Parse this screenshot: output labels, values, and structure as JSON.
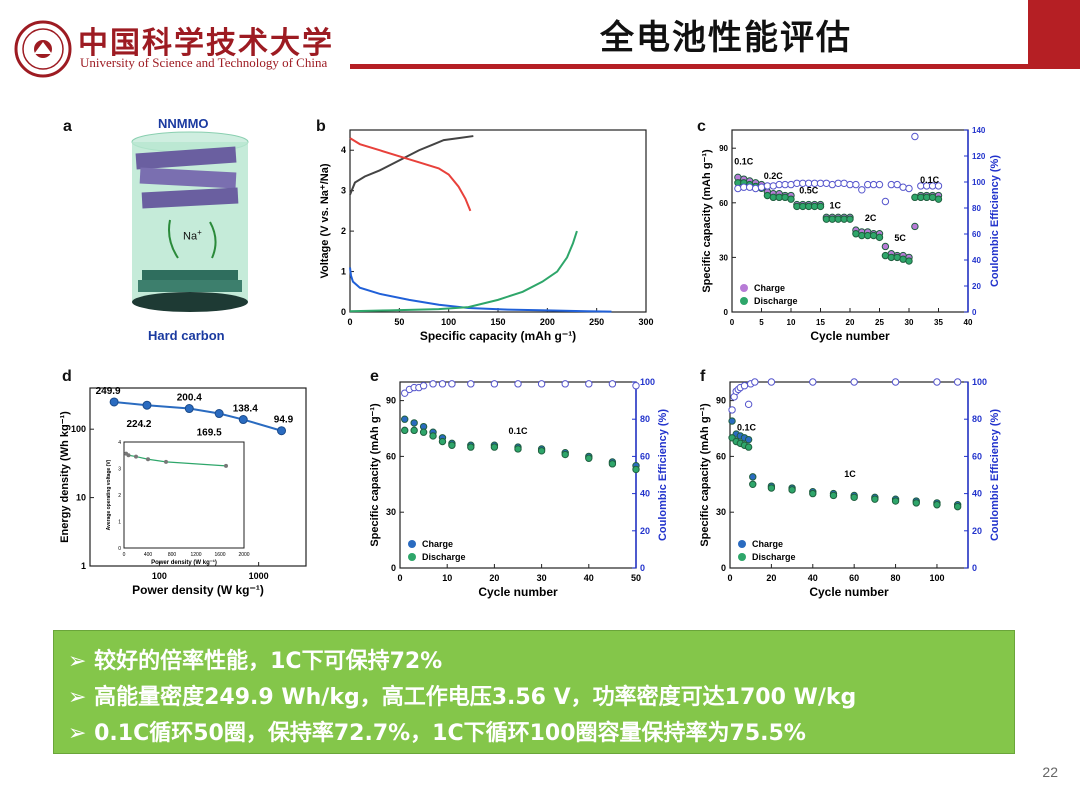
{
  "header": {
    "title": "全电池性能评估",
    "logo_cn": "中国科学技术大学",
    "logo_en": "University of Science and Technology of China",
    "accent_color": "#b51f24"
  },
  "panels": {
    "a": {
      "letter": "a",
      "top_label": "NNMMO",
      "ion_label": "Na",
      "ion_charge": "+",
      "bottom_label": "Hard carbon"
    }
  },
  "chart_data": [
    {
      "id": "b",
      "letter": "b",
      "type": "line",
      "title": "",
      "xlabel": "Specific capacity (mAh g⁻¹)",
      "ylabel": "Voltage (V vs. Na⁺/Na)",
      "xlim": [
        0,
        300
      ],
      "ylim": [
        0,
        4.5
      ],
      "xticks": [
        0,
        50,
        100,
        150,
        200,
        250,
        300
      ],
      "yticks": [
        0,
        1,
        2,
        3,
        4
      ],
      "series": [
        {
          "name": "cathode charge",
          "color": "#444444",
          "x": [
            0,
            5,
            15,
            30,
            50,
            70,
            85,
            95,
            110,
            125
          ],
          "y": [
            2.9,
            3.2,
            3.35,
            3.5,
            3.75,
            4.0,
            4.15,
            4.25,
            4.3,
            4.35
          ]
        },
        {
          "name": "cathode discharge",
          "color": "#e8413b",
          "x": [
            0,
            10,
            30,
            50,
            70,
            90,
            100,
            110,
            117,
            122
          ],
          "y": [
            4.3,
            4.15,
            4.0,
            3.85,
            3.7,
            3.55,
            3.4,
            3.1,
            2.8,
            2.5
          ]
        },
        {
          "name": "anode sodiation",
          "color": "#2060d8",
          "x": [
            0,
            1,
            3,
            10,
            30,
            60,
            90,
            120,
            160,
            200,
            240,
            265
          ],
          "y": [
            1.1,
            0.9,
            0.75,
            0.6,
            0.45,
            0.3,
            0.18,
            0.1,
            0.06,
            0.04,
            0.02,
            0.01
          ]
        },
        {
          "name": "anode desodiation",
          "color": "#2ea66a",
          "x": [
            0,
            40,
            90,
            120,
            150,
            175,
            195,
            210,
            220,
            226,
            230
          ],
          "y": [
            0.02,
            0.04,
            0.07,
            0.12,
            0.3,
            0.5,
            0.75,
            1.0,
            1.35,
            1.7,
            2.0
          ]
        }
      ]
    },
    {
      "id": "c",
      "letter": "c",
      "type": "scatter",
      "xlabel": "Cycle number",
      "ylabel": "Specific capacity (mAh g⁻¹)",
      "y2label": "Coulombic Efficiency (%)",
      "xlim": [
        0,
        40
      ],
      "ylim": [
        0,
        100
      ],
      "y2lim": [
        0,
        140
      ],
      "xticks": [
        0,
        5,
        10,
        15,
        20,
        25,
        30,
        35,
        40
      ],
      "yticks": [
        0,
        30,
        60,
        90
      ],
      "y2ticks": [
        0,
        20,
        40,
        60,
        80,
        100,
        120,
        140
      ],
      "rate_labels": [
        {
          "text": "0.1C",
          "x": 2,
          "y": 81
        },
        {
          "text": "0.2C",
          "x": 7,
          "y": 73
        },
        {
          "text": "0.5C",
          "x": 13,
          "y": 65
        },
        {
          "text": "1C",
          "x": 17.5,
          "y": 57
        },
        {
          "text": "2C",
          "x": 23.5,
          "y": 50
        },
        {
          "text": "5C",
          "x": 28.5,
          "y": 39
        },
        {
          "text": "0.1C",
          "x": 33.5,
          "y": 71
        }
      ],
      "legend": [
        "Charge",
        "Discharge"
      ],
      "series": [
        {
          "name": "Charge",
          "color": "#b77bd6",
          "x": [
            1,
            2,
            3,
            4,
            5,
            6,
            7,
            8,
            9,
            10,
            11,
            12,
            13,
            14,
            15,
            16,
            17,
            18,
            19,
            20,
            21,
            22,
            23,
            24,
            25,
            26,
            27,
            28,
            29,
            30,
            31,
            32,
            33,
            34,
            35
          ],
          "y": [
            74,
            73,
            72,
            71,
            70,
            66,
            65,
            65,
            64,
            64,
            59,
            59,
            59,
            59,
            59,
            52,
            52,
            52,
            52,
            52,
            45,
            44,
            44,
            43,
            43,
            36,
            32,
            31,
            31,
            30,
            47,
            64,
            64,
            64,
            64
          ]
        },
        {
          "name": "Discharge",
          "color": "#2ea66a",
          "x": [
            1,
            2,
            3,
            4,
            5,
            6,
            7,
            8,
            9,
            10,
            11,
            12,
            13,
            14,
            15,
            16,
            17,
            18,
            19,
            20,
            21,
            22,
            23,
            24,
            25,
            26,
            27,
            28,
            29,
            30,
            31,
            32,
            33,
            34,
            35
          ],
          "y": [
            71,
            71,
            70,
            69,
            68,
            64,
            63,
            63,
            63,
            62,
            58,
            58,
            58,
            58,
            58,
            51,
            51,
            51,
            51,
            51,
            43,
            42,
            42,
            42,
            41,
            31,
            30,
            30,
            29,
            28,
            63,
            63,
            63,
            63,
            62
          ]
        },
        {
          "name": "Coulombic Efficiency",
          "color": "#5555cc",
          "axis": "y2",
          "x": [
            1,
            2,
            3,
            4,
            5,
            6,
            7,
            8,
            9,
            10,
            11,
            12,
            13,
            14,
            15,
            16,
            17,
            18,
            19,
            20,
            21,
            22,
            23,
            24,
            25,
            26,
            27,
            28,
            29,
            30,
            31,
            32,
            33,
            34,
            35
          ],
          "y": [
            95,
            96,
            96,
            95,
            96,
            97,
            97,
            98,
            98,
            98,
            99,
            99,
            99,
            99,
            99,
            99,
            98,
            99,
            99,
            98,
            98,
            94,
            98,
            98,
            98,
            85,
            98,
            98,
            96,
            95,
            135,
            97,
            97,
            97,
            97
          ]
        }
      ]
    },
    {
      "id": "d",
      "letter": "d",
      "type": "line",
      "xlabel": "Power density (W kg⁻¹)",
      "ylabel": "Energy density (Wh kg⁻¹)",
      "xscale": "log",
      "yscale": "log",
      "xlim": [
        20,
        3000
      ],
      "ylim": [
        1,
        400
      ],
      "xticks": [
        100,
        1000
      ],
      "yticks": [
        1,
        10,
        100
      ],
      "series": [
        {
          "name": "Energy density",
          "color": "#2a6bc0",
          "x": [
            35,
            75,
            200,
            400,
            700,
            1700
          ],
          "y": [
            249.9,
            224.2,
            200.4,
            169.5,
            138.4,
            94.9
          ]
        }
      ],
      "point_labels": [
        "249.9",
        "224.2",
        "200.4",
        "169.5",
        "138.4",
        "94.9"
      ],
      "inset": {
        "xlabel": "Power density (W kg⁻¹)",
        "ylabel": "Average operating voltage (V)",
        "xlim": [
          0,
          2000
        ],
        "ylim": [
          0,
          4
        ],
        "xticks": [
          0,
          400,
          800,
          1200,
          1600,
          2000
        ],
        "yticks": [
          0,
          1,
          2,
          3,
          4
        ],
        "x": [
          35,
          75,
          200,
          400,
          700,
          1700
        ],
        "y": [
          3.56,
          3.5,
          3.45,
          3.35,
          3.25,
          3.1
        ]
      }
    },
    {
      "id": "e",
      "letter": "e",
      "type": "scatter",
      "xlabel": "Cycle number",
      "ylabel": "Specific capacity (mAh g⁻¹)",
      "y2label": "Coulombic Efficiency (%)",
      "xlim": [
        0,
        50
      ],
      "ylim": [
        0,
        100
      ],
      "y2lim": [
        0,
        100
      ],
      "xticks": [
        0,
        10,
        20,
        30,
        40,
        50
      ],
      "yticks": [
        0,
        30,
        60,
        90
      ],
      "y2ticks": [
        0,
        20,
        40,
        60,
        80,
        100
      ],
      "rate_label": "0.1C",
      "legend": [
        "Charge",
        "Discharge"
      ],
      "series": [
        {
          "name": "Charge",
          "color": "#2a6bc0",
          "x": [
            1,
            3,
            5,
            7,
            9,
            11,
            15,
            20,
            25,
            30,
            35,
            40,
            45,
            50
          ],
          "y": [
            80,
            78,
            76,
            73,
            70,
            67,
            66,
            66,
            65,
            64,
            62,
            60,
            57,
            55
          ]
        },
        {
          "name": "Discharge",
          "color": "#2ea66a",
          "x": [
            1,
            3,
            5,
            7,
            9,
            11,
            15,
            20,
            25,
            30,
            35,
            40,
            45,
            50
          ],
          "y": [
            74,
            74,
            73,
            71,
            68,
            66,
            65,
            65,
            64,
            63,
            61,
            59,
            56,
            53
          ]
        },
        {
          "name": "Coulombic Efficiency",
          "color": "#5555cc",
          "axis": "y2",
          "x": [
            1,
            2,
            3,
            4,
            5,
            7,
            9,
            11,
            15,
            20,
            25,
            30,
            35,
            40,
            45,
            50
          ],
          "y": [
            94,
            96,
            97,
            97,
            98,
            99,
            99,
            99,
            99,
            99,
            99,
            99,
            99,
            99,
            99,
            98
          ]
        }
      ]
    },
    {
      "id": "f",
      "letter": "f",
      "type": "scatter",
      "xlabel": "Cycle number",
      "ylabel": "Specific capacity (mAh g⁻¹)",
      "y2label": "Coulombic Efficiency (%)",
      "xlim": [
        0,
        115
      ],
      "ylim": [
        0,
        100
      ],
      "y2lim": [
        0,
        100
      ],
      "xticks": [
        0,
        20,
        40,
        60,
        80,
        100
      ],
      "yticks": [
        0,
        30,
        60,
        90
      ],
      "y2ticks": [
        0,
        20,
        40,
        60,
        80,
        100
      ],
      "rate_labels": [
        "0.1C",
        "1C"
      ],
      "legend": [
        "Charge",
        "Discharge"
      ],
      "series": [
        {
          "name": "Charge",
          "color": "#2a6bc0",
          "x": [
            1,
            3,
            5,
            7,
            9,
            11,
            20,
            30,
            40,
            50,
            60,
            70,
            80,
            90,
            100,
            110
          ],
          "y": [
            79,
            72,
            71,
            70,
            69,
            49,
            44,
            43,
            41,
            40,
            39,
            38,
            37,
            36,
            35,
            34
          ]
        },
        {
          "name": "Discharge",
          "color": "#2ea66a",
          "x": [
            1,
            3,
            5,
            7,
            9,
            11,
            20,
            30,
            40,
            50,
            60,
            70,
            80,
            90,
            100,
            110
          ],
          "y": [
            70,
            68,
            67,
            66,
            65,
            45,
            43,
            42,
            40,
            39,
            38,
            37,
            36,
            35,
            34,
            33
          ]
        },
        {
          "name": "Coulombic Efficiency",
          "color": "#5555cc",
          "axis": "y2",
          "x": [
            1,
            2,
            3,
            4,
            5,
            7,
            9,
            10,
            12,
            20,
            40,
            60,
            80,
            100,
            110
          ],
          "y": [
            85,
            92,
            95,
            96,
            97,
            98,
            88,
            99,
            100,
            100,
            100,
            100,
            100,
            100,
            100
          ]
        }
      ]
    }
  ],
  "summary": {
    "bullet_glyph": "➢",
    "bullets": [
      "较好的倍率性能，1C下可保持72%",
      "高能量密度249.9 Wh/kg，高工作电压3.56 V，功率密度可达1700 W/kg",
      "0.1C循环50圈，保持率72.7%，1C下循环100圈容量保持率为75.5%"
    ],
    "bg_color": "#84c64a"
  },
  "page_number": "22"
}
